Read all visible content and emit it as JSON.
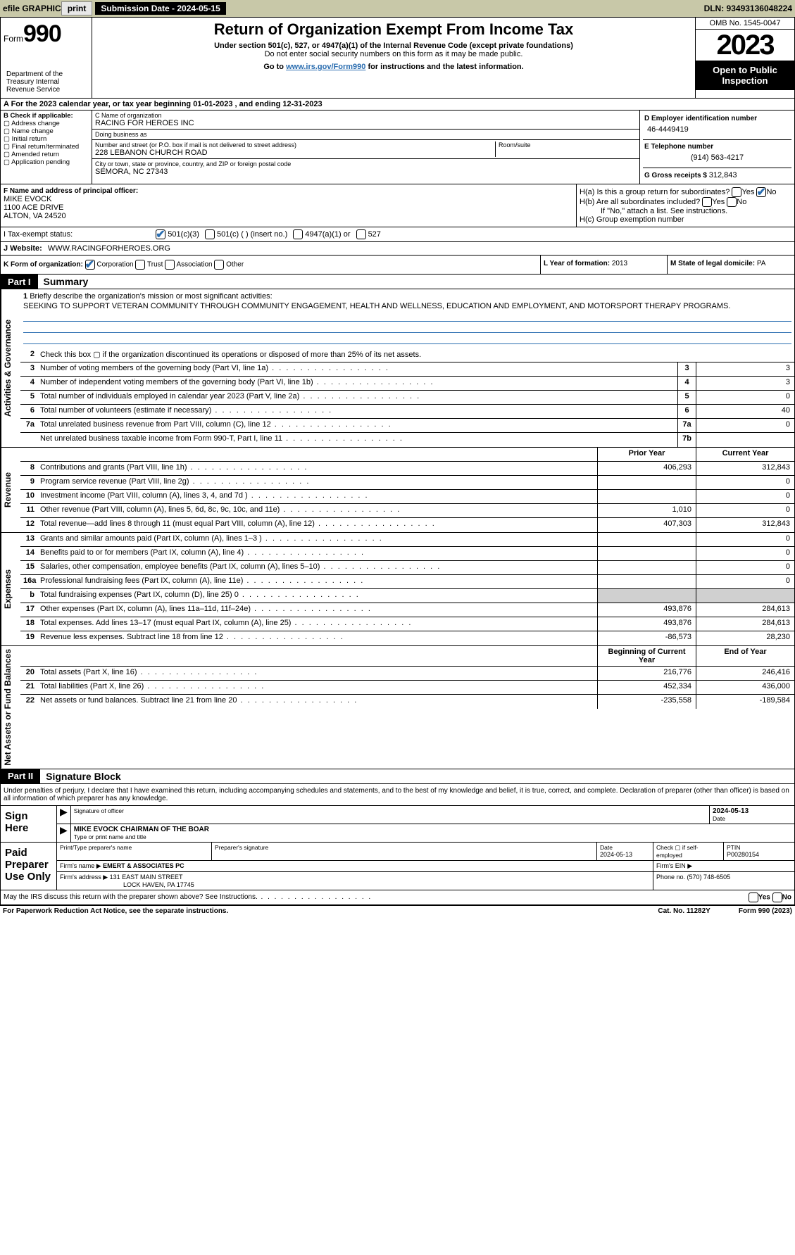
{
  "top": {
    "efile": "efile GRAPHIC",
    "print": "print",
    "sub_label": "Submission Date - 2024-05-15",
    "dln": "DLN: 93493136048224"
  },
  "header": {
    "form_prefix": "Form",
    "form_num": "990",
    "title": "Return of Organization Exempt From Income Tax",
    "sub1": "Under section 501(c), 527, or 4947(a)(1) of the Internal Revenue Code (except private foundations)",
    "sub2": "Do not enter social security numbers on this form as it may be made public.",
    "sub3_pre": "Go to ",
    "sub3_link": "www.irs.gov/Form990",
    "sub3_post": " for instructions and the latest information.",
    "omb": "OMB No. 1545-0047",
    "year": "2023",
    "open": "Open to Public Inspection",
    "dept": "Department of the Treasury Internal Revenue Service"
  },
  "lineA": "A For the 2023 calendar year, or tax year beginning 01-01-2023    , and ending 12-31-2023",
  "boxB": {
    "hdr": "B Check if applicable:",
    "items": [
      "Address change",
      "Name change",
      "Initial return",
      "Final return/terminated",
      "Amended return",
      "Application pending"
    ]
  },
  "boxC": {
    "name_lbl": "C Name of organization",
    "name": "RACING FOR HEROES INC",
    "dba_lbl": "Doing business as",
    "addr_lbl": "Number and street (or P.O. box if mail is not delivered to street address)",
    "addr": "228 LEBANON CHURCH ROAD",
    "room_lbl": "Room/suite",
    "city_lbl": "City or town, state or province, country, and ZIP or foreign postal code",
    "city": "SEMORA, NC  27343"
  },
  "boxD": {
    "ein_lbl": "D Employer identification number",
    "ein": "46-4449419",
    "tel_lbl": "E Telephone number",
    "tel": "(914) 563-4217",
    "gross_lbl": "G Gross receipts $ ",
    "gross": "312,843"
  },
  "boxF": {
    "lbl": "F  Name and address of principal officer:",
    "name": "MIKE EVOCK",
    "line1": "1100 ACE DRIVE",
    "line2": "ALTON, VA  24520"
  },
  "boxH": {
    "ha": "H(a)  Is this a group return for subordinates?",
    "hb": "H(b)  Are all subordinates included?",
    "hb_note": "If \"No,\" attach a list. See instructions.",
    "hc": "H(c)  Group exemption number ",
    "yes": "Yes",
    "no": "No"
  },
  "rowI": {
    "lbl": "I    Tax-exempt status:",
    "o1": "501(c)(3)",
    "o2": "501(c) (  ) (insert no.)",
    "o3": "4947(a)(1) or",
    "o4": "527"
  },
  "rowJ": {
    "lbl": "J   Website: ",
    "val": "WWW.RACINGFORHEROES.ORG"
  },
  "rowK": {
    "lbl": "K Form of organization:",
    "corp": "Corporation",
    "trust": "Trust",
    "assoc": "Association",
    "other": "Other",
    "l_lbl": "L Year of formation: ",
    "l_val": "2013",
    "m_lbl": "M State of legal domicile: ",
    "m_val": "PA"
  },
  "parts": {
    "p1": "Part I",
    "p1_title": "Summary",
    "p2": "Part II",
    "p2_title": "Signature Block"
  },
  "sides": {
    "ag": "Activities & Governance",
    "rev": "Revenue",
    "exp": "Expenses",
    "na": "Net Assets or Fund Balances"
  },
  "summary": {
    "l1_lbl": "Briefly describe the organization's mission or most significant activities:",
    "l1_text": "SEEKING TO SUPPORT VETERAN COMMUNITY THROUGH COMMUNITY ENGAGEMENT, HEALTH AND WELLNESS, EDUCATION AND EMPLOYMENT, AND MOTORSPORT THERAPY PROGRAMS.",
    "l2": "Check this box ▢ if the organization discontinued its operations or disposed of more than 25% of its net assets.",
    "rows_ag": [
      {
        "n": "3",
        "t": "Number of voting members of the governing body (Part VI, line 1a)",
        "b": "3",
        "v": "3"
      },
      {
        "n": "4",
        "t": "Number of independent voting members of the governing body (Part VI, line 1b)",
        "b": "4",
        "v": "3"
      },
      {
        "n": "5",
        "t": "Total number of individuals employed in calendar year 2023 (Part V, line 2a)",
        "b": "5",
        "v": "0"
      },
      {
        "n": "6",
        "t": "Total number of volunteers (estimate if necessary)",
        "b": "6",
        "v": "40"
      },
      {
        "n": "7a",
        "t": "Total unrelated business revenue from Part VIII, column (C), line 12",
        "b": "7a",
        "v": "0"
      },
      {
        "n": "",
        "t": "Net unrelated business taxable income from Form 990-T, Part I, line 11",
        "b": "7b",
        "v": ""
      }
    ],
    "col_hdrs": {
      "prior": "Prior Year",
      "current": "Current Year"
    },
    "rows_rev": [
      {
        "n": "8",
        "t": "Contributions and grants (Part VIII, line 1h)",
        "p": "406,293",
        "c": "312,843"
      },
      {
        "n": "9",
        "t": "Program service revenue (Part VIII, line 2g)",
        "p": "",
        "c": "0"
      },
      {
        "n": "10",
        "t": "Investment income (Part VIII, column (A), lines 3, 4, and 7d )",
        "p": "",
        "c": "0"
      },
      {
        "n": "11",
        "t": "Other revenue (Part VIII, column (A), lines 5, 6d, 8c, 9c, 10c, and 11e)",
        "p": "1,010",
        "c": "0"
      },
      {
        "n": "12",
        "t": "Total revenue—add lines 8 through 11 (must equal Part VIII, column (A), line 12)",
        "p": "407,303",
        "c": "312,843"
      }
    ],
    "rows_exp": [
      {
        "n": "13",
        "t": "Grants and similar amounts paid (Part IX, column (A), lines 1–3 )",
        "p": "",
        "c": "0"
      },
      {
        "n": "14",
        "t": "Benefits paid to or for members (Part IX, column (A), line 4)",
        "p": "",
        "c": "0"
      },
      {
        "n": "15",
        "t": "Salaries, other compensation, employee benefits (Part IX, column (A), lines 5–10)",
        "p": "",
        "c": "0"
      },
      {
        "n": "16a",
        "t": "Professional fundraising fees (Part IX, column (A), line 11e)",
        "p": "",
        "c": "0"
      },
      {
        "n": "b",
        "t": "Total fundraising expenses (Part IX, column (D), line 25) 0",
        "p": "SHADE",
        "c": "SHADE"
      },
      {
        "n": "17",
        "t": "Other expenses (Part IX, column (A), lines 11a–11d, 11f–24e)",
        "p": "493,876",
        "c": "284,613"
      },
      {
        "n": "18",
        "t": "Total expenses. Add lines 13–17 (must equal Part IX, column (A), line 25)",
        "p": "493,876",
        "c": "284,613"
      },
      {
        "n": "19",
        "t": "Revenue less expenses. Subtract line 18 from line 12",
        "p": "-86,573",
        "c": "28,230"
      }
    ],
    "col_hdrs2": {
      "beg": "Beginning of Current Year",
      "end": "End of Year"
    },
    "rows_na": [
      {
        "n": "20",
        "t": "Total assets (Part X, line 16)",
        "p": "216,776",
        "c": "246,416"
      },
      {
        "n": "21",
        "t": "Total liabilities (Part X, line 26)",
        "p": "452,334",
        "c": "436,000"
      },
      {
        "n": "22",
        "t": "Net assets or fund balances. Subtract line 21 from line 20",
        "p": "-235,558",
        "c": "-189,584"
      }
    ]
  },
  "sig": {
    "intro": "Under penalties of perjury, I declare that I have examined this return, including accompanying schedules and statements, and to the best of my knowledge and belief, it is true, correct, and complete. Declaration of preparer (other than officer) is based on all information of which preparer has any knowledge.",
    "sign_here": "Sign Here",
    "sig_lbl": "Signature of officer",
    "date_val": "2024-05-13",
    "date_lbl": "Date",
    "name": "MIKE EVOCK CHAIRMAN OF THE BOAR",
    "name_lbl": "Type or print name and title",
    "paid": "Paid Preparer Use Only",
    "prep_name_lbl": "Print/Type preparer's name",
    "prep_sig_lbl": "Preparer's signature",
    "prep_date_lbl": "Date",
    "prep_date": "2024-05-13",
    "check_lbl": "Check ▢ if self-employed",
    "ptin_lbl": "PTIN",
    "ptin": "P00280154",
    "firm_name_lbl": "Firm's name ",
    "firm_name": "EMERT & ASSOCIATES PC",
    "firm_ein_lbl": "Firm's EIN ",
    "firm_addr_lbl": "Firm's address ",
    "firm_addr1": "131 EAST MAIN STREET",
    "firm_addr2": "LOCK HAVEN, PA  17745",
    "phone_lbl": "Phone no. ",
    "phone": "(570) 748-6505",
    "discuss": "May the IRS discuss this return with the preparer shown above? See Instructions."
  },
  "footer": {
    "left": "For Paperwork Reduction Act Notice, see the separate instructions.",
    "mid": "Cat. No. 11282Y",
    "right": "Form 990 (2023)"
  }
}
